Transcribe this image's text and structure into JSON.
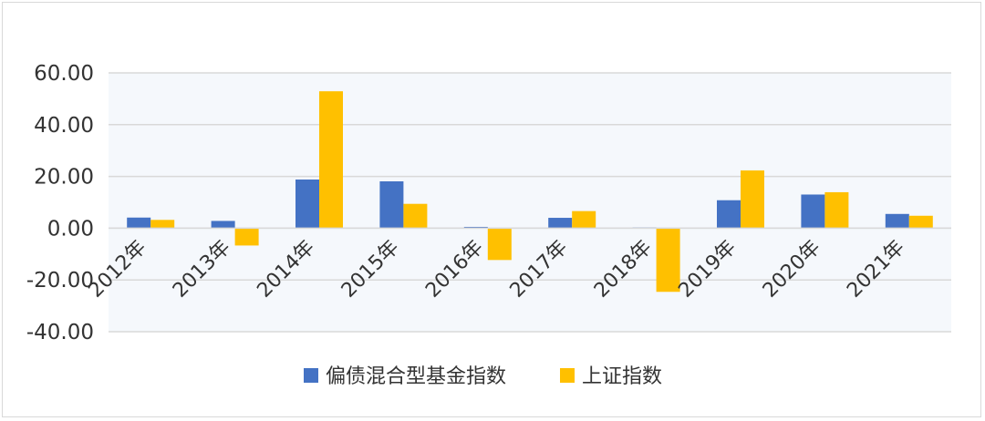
{
  "chart_data": {
    "type": "bar",
    "title": "",
    "xlabel": "",
    "ylabel": "",
    "categories": [
      "2012年",
      "2013年",
      "2014年",
      "2015年",
      "2016年",
      "2017年",
      "2018年",
      "2019年",
      "2020年",
      "2021年"
    ],
    "series": [
      {
        "name": "偏债混合型基金指数",
        "color": "#4472C4",
        "values": [
          4.1,
          2.8,
          18.8,
          18.1,
          0.5,
          4.0,
          0.3,
          10.8,
          13.0,
          5.5
        ]
      },
      {
        "name": "上证指数",
        "color": "#FFC000",
        "values": [
          3.2,
          -6.7,
          52.9,
          9.4,
          -12.3,
          6.6,
          -24.6,
          22.3,
          13.9,
          4.8
        ]
      }
    ],
    "ylim": [
      -40,
      60
    ],
    "y_ticks": [
      60,
      40,
      20,
      0,
      -20,
      -40
    ],
    "y_tick_labels": [
      "60.00",
      "40.00",
      "20.00",
      "0.00",
      "-20.00",
      "-40.00"
    ],
    "grid": true,
    "legend_position": "bottom",
    "plot_background": "#F5F8FC",
    "gridline_color": "#D9D9D9"
  }
}
